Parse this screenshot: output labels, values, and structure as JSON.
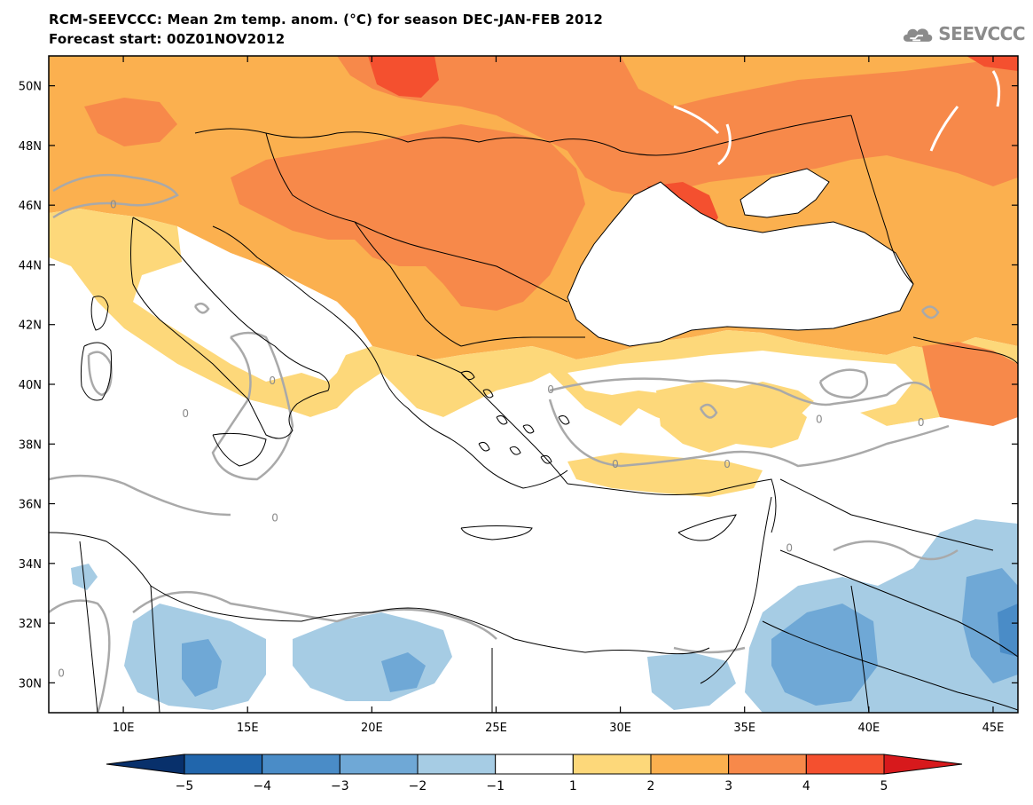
{
  "header": {
    "title_line1": "RCM-SEEVCCC: Mean 2m temp. anom. (°C) for season DEC-JAN-FEB 2012",
    "title_line2": "Forecast start: 00Z01NOV2012"
  },
  "logo": {
    "text": "SEEVCCC",
    "icon": "cloud-logo-icon",
    "color": "#8b8b8b"
  },
  "map": {
    "lon_range": [
      7,
      46
    ],
    "lat_range": [
      29,
      51
    ],
    "lat_ticks": [
      {
        "value": 50,
        "label": "50N"
      },
      {
        "value": 48,
        "label": "48N"
      },
      {
        "value": 46,
        "label": "46N"
      },
      {
        "value": 44,
        "label": "44N"
      },
      {
        "value": 42,
        "label": "42N"
      },
      {
        "value": 40,
        "label": "40N"
      },
      {
        "value": 38,
        "label": "38N"
      },
      {
        "value": 36,
        "label": "36N"
      },
      {
        "value": 34,
        "label": "34N"
      },
      {
        "value": 32,
        "label": "32N"
      },
      {
        "value": 30,
        "label": "30N"
      }
    ],
    "lon_ticks": [
      {
        "value": 10,
        "label": "10E"
      },
      {
        "value": 15,
        "label": "15E"
      },
      {
        "value": 20,
        "label": "20E"
      },
      {
        "value": 25,
        "label": "25E"
      },
      {
        "value": 30,
        "label": "30E"
      },
      {
        "value": 35,
        "label": "35E"
      },
      {
        "value": 40,
        "label": "40E"
      },
      {
        "value": 45,
        "label": "45E"
      }
    ],
    "zero_contour_label": "0",
    "zero_contour_label_count": 11
  },
  "colorbar": {
    "labels": [
      "−5",
      "−4",
      "−3",
      "−2",
      "−1",
      "1",
      "2",
      "3",
      "4",
      "5"
    ],
    "colors": [
      "#08306b",
      "#2166ac",
      "#4a8cc7",
      "#6fa8d6",
      "#a6cce4",
      "#ffffff",
      "#fdd87a",
      "#fbb04f",
      "#f7894a",
      "#f4502f",
      "#d7191c"
    ]
  }
}
